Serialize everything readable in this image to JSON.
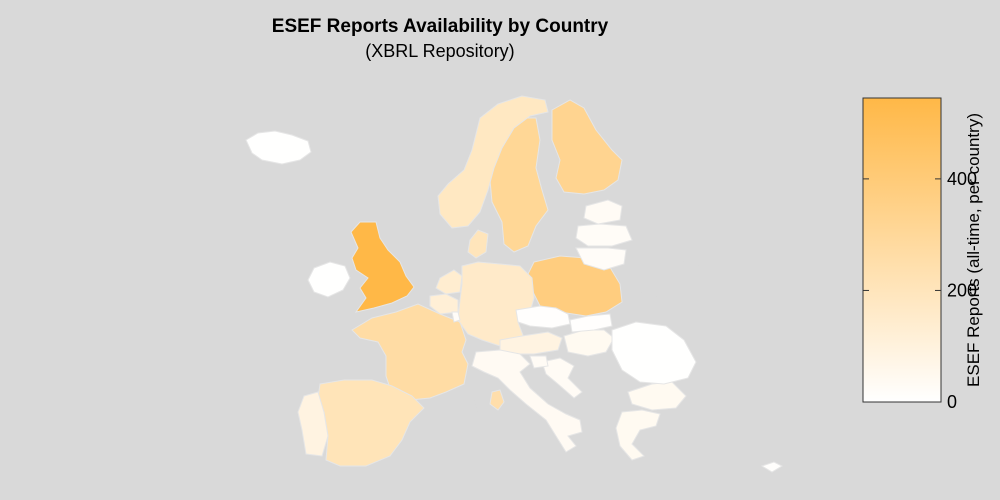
{
  "header": {
    "title": "ESEF Reports Availability by Country",
    "subtitle": "(XBRL Repository)"
  },
  "legend": {
    "label": "ESEF Reports (all-time, per country)",
    "min": 0,
    "max": 545,
    "ticks": [
      {
        "value": 0,
        "label": "0"
      },
      {
        "value": 200,
        "label": "200"
      },
      {
        "value": 400,
        "label": "400"
      }
    ],
    "color_low": "#ffffff",
    "color_high": "#ffb847"
  },
  "map_data": {
    "type": "choropleth",
    "countries": [
      {
        "name": "United Kingdom",
        "value": 545
      },
      {
        "name": "Poland",
        "value": 380
      },
      {
        "name": "Finland",
        "value": 330
      },
      {
        "name": "Sweden",
        "value": 310
      },
      {
        "name": "France",
        "value": 270
      },
      {
        "name": "Spain",
        "value": 210
      },
      {
        "name": "Norway",
        "value": 180
      },
      {
        "name": "Denmark",
        "value": 200
      },
      {
        "name": "Germany",
        "value": 160
      },
      {
        "name": "Netherlands",
        "value": 140
      },
      {
        "name": "Belgium",
        "value": 120
      },
      {
        "name": "Austria",
        "value": 90
      },
      {
        "name": "Portugal",
        "value": 90
      },
      {
        "name": "Italy",
        "value": 35
      },
      {
        "name": "Greece",
        "value": 40
      },
      {
        "name": "Bulgaria",
        "value": 40
      },
      {
        "name": "Hungary",
        "value": 40
      },
      {
        "name": "Croatia",
        "value": 30
      },
      {
        "name": "Slovenia",
        "value": 30
      },
      {
        "name": "Estonia",
        "value": 30
      },
      {
        "name": "Latvia",
        "value": 25
      },
      {
        "name": "Lithuania",
        "value": 20
      },
      {
        "name": "Malta",
        "value": 250
      },
      {
        "name": "Czech Republic",
        "value": 5
      },
      {
        "name": "Slovakia",
        "value": 5
      },
      {
        "name": "Romania",
        "value": 3
      },
      {
        "name": "Ireland",
        "value": 2
      },
      {
        "name": "Iceland",
        "value": 2
      },
      {
        "name": "Luxembourg",
        "value": 20
      },
      {
        "name": "Cyprus",
        "value": 10
      }
    ]
  }
}
